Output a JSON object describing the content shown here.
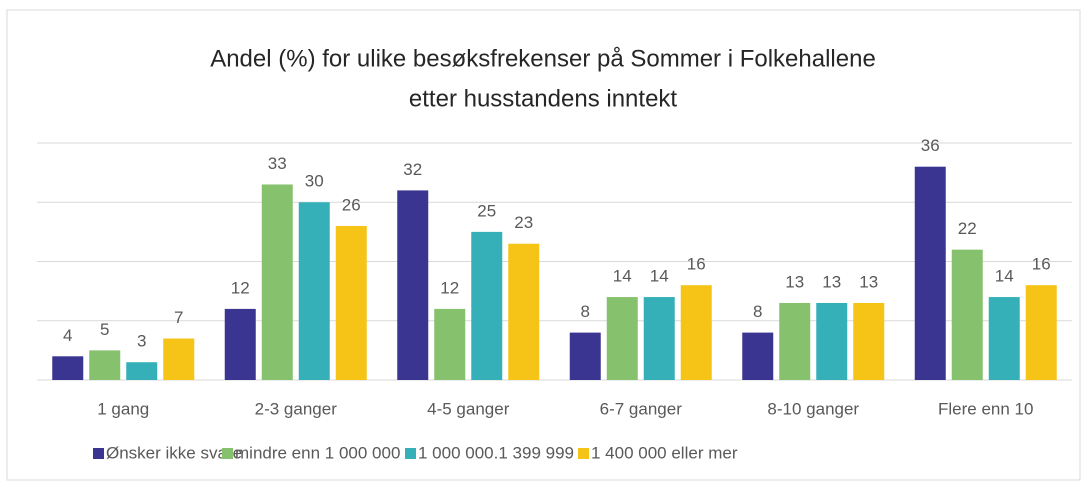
{
  "chart_data": {
    "type": "bar",
    "title": [
      "Andel (%) for ulike besøksfrekenser på Sommer i Folkehallene",
      "etter husstandens inntekt"
    ],
    "categories": [
      "1 gang",
      "2-3 ganger",
      "4-5 ganger",
      "6-7 ganger",
      "8-10 ganger",
      "Flere enn 10"
    ],
    "series": [
      {
        "name": "Ønsker ikke svare",
        "color": "#3b3592",
        "values": [
          4,
          12,
          32,
          8,
          8,
          36
        ]
      },
      {
        "name": "mindre enn 1 000 000",
        "color": "#86c26d",
        "values": [
          5,
          33,
          12,
          14,
          13,
          22
        ]
      },
      {
        "name": "1 000 000.1 399 999",
        "color": "#35b0b8",
        "values": [
          3,
          30,
          25,
          14,
          13,
          14
        ]
      },
      {
        "name": "1 400 000 eller mer",
        "color": "#f6c317",
        "values": [
          7,
          26,
          23,
          16,
          13,
          16
        ]
      }
    ],
    "ylim": [
      0,
      40
    ],
    "yticks": [
      0,
      10,
      20,
      30,
      40
    ],
    "grid": true,
    "legend": "bottom"
  }
}
